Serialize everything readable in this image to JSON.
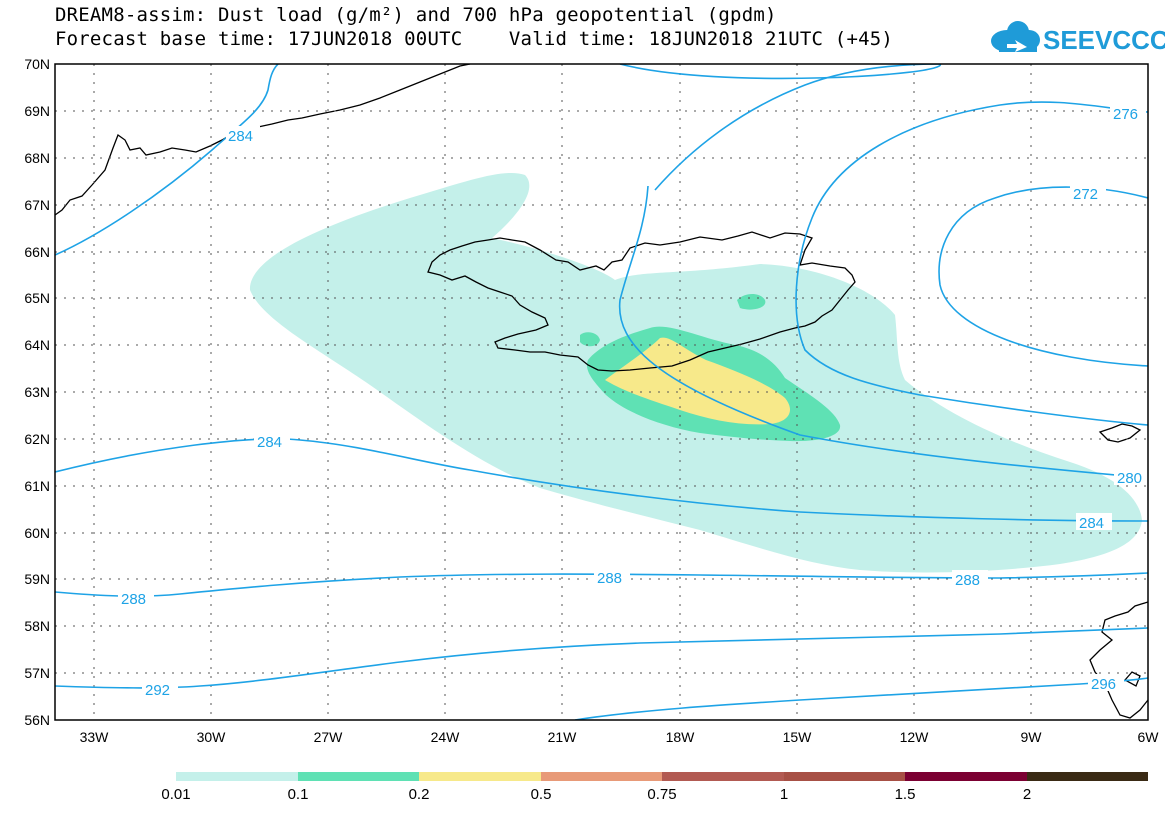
{
  "header": {
    "title_line1": "DREAM8-assim: Dust load (g/m²) and 700 hPa geopotential (gpdm)",
    "title_line2": "Forecast base time: 17JUN2018 00UTC    Valid time: 18JUN2018 21UTC (+45)"
  },
  "logo": {
    "text": "SEEVCCC",
    "color": "#1f9bd8"
  },
  "map": {
    "lat_labels": [
      "70N",
      "69N",
      "68N",
      "67N",
      "66N",
      "65N",
      "64N",
      "63N",
      "62N",
      "61N",
      "60N",
      "59N",
      "58N",
      "57N",
      "56N"
    ],
    "lon_labels": [
      "33W",
      "30W",
      "27W",
      "24W",
      "21W",
      "18W",
      "15W",
      "12W",
      "9W",
      "6W"
    ],
    "contour_labels": [
      "284",
      "276",
      "272",
      "284",
      "280",
      "284",
      "288",
      "288",
      "288",
      "292",
      "296"
    ],
    "contour_color": "#1ea3e6"
  },
  "legend": {
    "colors": [
      "#c4f0ea",
      "#5fe1b4",
      "#f7e98a",
      "#e89a78",
      "#b25a52",
      "#a75045",
      "#7b0032",
      "#3a2a14",
      "#9b6fa6"
    ],
    "labels": [
      "0.01",
      "0.1",
      "0.2",
      "0.5",
      "0.75",
      "1",
      "1.5",
      "2"
    ]
  }
}
